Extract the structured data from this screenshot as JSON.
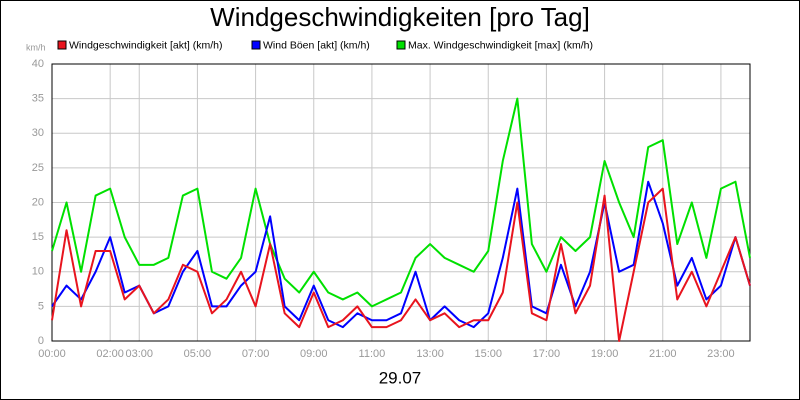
{
  "chart_data": {
    "type": "line",
    "title": "Windgeschwindigkeiten [pro Tag]",
    "ylabel": "km/h",
    "xlabel": "29.07",
    "x": [
      0,
      0.5,
      1,
      1.5,
      2,
      2.5,
      3,
      3.5,
      4,
      4.5,
      5,
      5.5,
      6,
      6.5,
      7,
      7.5,
      8,
      8.5,
      9,
      9.5,
      10,
      10.5,
      11,
      11.5,
      12,
      12.5,
      13,
      13.5,
      14,
      14.5,
      15,
      15.5,
      16,
      16.5,
      17,
      17.5,
      18,
      18.5,
      19,
      19.5,
      20,
      20.5,
      21,
      21.5,
      22,
      22.5,
      23,
      23.5,
      24
    ],
    "series": [
      {
        "name": "Windgeschwindigkeit [akt] (km/h)",
        "color": "#e8141e",
        "values": [
          3,
          16,
          5,
          13,
          13,
          6,
          8,
          4,
          6,
          11,
          10,
          4,
          6,
          10,
          5,
          14,
          4,
          2,
          7,
          2,
          3,
          5,
          2,
          2,
          3,
          6,
          3,
          4,
          2,
          3,
          3,
          7,
          20,
          4,
          3,
          14,
          4,
          8,
          21,
          0,
          10,
          20,
          22,
          6,
          10,
          5,
          10,
          15,
          8
        ]
      },
      {
        "name": "Wind Böen [akt] (km/h)",
        "color": "#0000ff",
        "values": [
          5,
          8,
          6,
          10,
          15,
          7,
          8,
          4,
          5,
          10,
          13,
          5,
          5,
          8,
          10,
          18,
          5,
          3,
          8,
          3,
          2,
          4,
          3,
          3,
          4,
          10,
          3,
          5,
          3,
          2,
          4,
          12,
          22,
          5,
          4,
          11,
          5,
          10,
          20,
          10,
          11,
          23,
          17,
          8,
          12,
          6,
          8,
          15,
          8
        ]
      },
      {
        "name": "Max. Windgeschwindigkeit [max] (km/h)",
        "color": "#00e000",
        "values": [
          13,
          20,
          10,
          21,
          22,
          15,
          11,
          11,
          12,
          21,
          22,
          10,
          9,
          12,
          22,
          14,
          9,
          7,
          10,
          7,
          6,
          7,
          5,
          6,
          7,
          12,
          14,
          12,
          11,
          10,
          13,
          26,
          35,
          14,
          10,
          15,
          13,
          15,
          26,
          20,
          15,
          28,
          29,
          14,
          20,
          12,
          22,
          23,
          12
        ]
      }
    ],
    "xlim": [
      0,
      24
    ],
    "xticks": [
      {
        "value": 0,
        "label": "00:00"
      },
      {
        "value": 2,
        "label": "02:00"
      },
      {
        "value": 3,
        "label": "03:00"
      },
      {
        "value": 5,
        "label": "05:00"
      },
      {
        "value": 7,
        "label": "07:00"
      },
      {
        "value": 9,
        "label": "09:00"
      },
      {
        "value": 11,
        "label": "11:00"
      },
      {
        "value": 13,
        "label": "13:00"
      },
      {
        "value": 15,
        "label": "15:00"
      },
      {
        "value": 17,
        "label": "17:00"
      },
      {
        "value": 19,
        "label": "19:00"
      },
      {
        "value": 21,
        "label": "21:00"
      },
      {
        "value": 23,
        "label": "23:00"
      }
    ],
    "ylim": [
      0,
      40
    ],
    "yticks": [
      0,
      5,
      10,
      15,
      20,
      25,
      30,
      35,
      40
    ],
    "grid": true
  }
}
